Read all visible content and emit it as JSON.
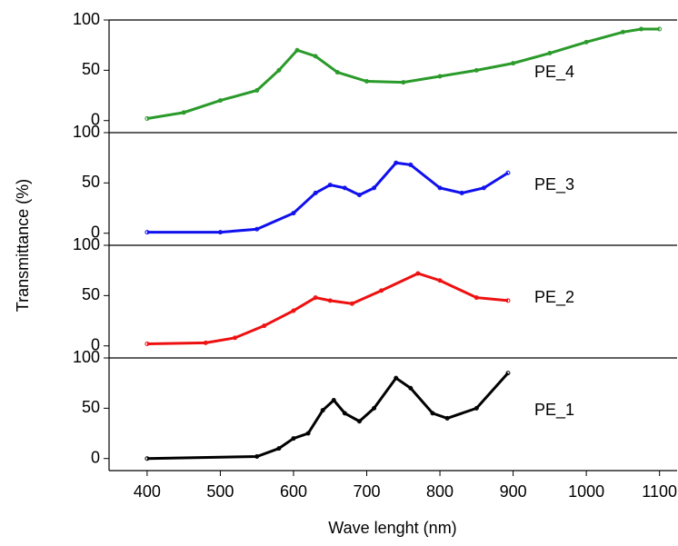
{
  "chart_data": [
    {
      "type": "line",
      "name": "PE_4",
      "color": "#2a9a2a",
      "ylabel": "Transmittance (%)",
      "x": [
        400,
        450,
        500,
        550,
        580,
        605,
        630,
        660,
        700,
        750,
        800,
        850,
        900,
        950,
        1000,
        1050,
        1075,
        1100
      ],
      "values": [
        2,
        8,
        20,
        30,
        50,
        70,
        64,
        48,
        39,
        38,
        44,
        50,
        57,
        67,
        78,
        88,
        91,
        91
      ],
      "xlim": [
        348,
        1124
      ],
      "ylim": [
        -12,
        100
      ],
      "yticks": [
        0,
        50,
        100
      ]
    },
    {
      "type": "line",
      "name": "PE_3",
      "color": "#1010ee",
      "x": [
        400,
        500,
        550,
        600,
        630,
        650,
        670,
        690,
        710,
        740,
        760,
        800,
        830,
        860,
        893
      ],
      "values": [
        1,
        1,
        4,
        20,
        40,
        48,
        45,
        38,
        45,
        70,
        68,
        45,
        40,
        45,
        60
      ],
      "xlim": [
        348,
        1124
      ],
      "ylim": [
        -12,
        100
      ],
      "yticks": [
        0,
        50,
        100
      ]
    },
    {
      "type": "line",
      "name": "PE_2",
      "color": "#ee1010",
      "x": [
        400,
        480,
        520,
        560,
        600,
        630,
        650,
        680,
        720,
        770,
        800,
        850,
        893
      ],
      "values": [
        2,
        3,
        8,
        20,
        35,
        48,
        45,
        42,
        55,
        72,
        65,
        48,
        45
      ],
      "xlim": [
        348,
        1124
      ],
      "ylim": [
        -12,
        100
      ],
      "yticks": [
        0,
        50,
        100
      ]
    },
    {
      "type": "line",
      "name": "PE_1",
      "color": "#000000",
      "xlabel": "Wave lenght (nm)",
      "x": [
        400,
        550,
        580,
        600,
        620,
        640,
        655,
        670,
        690,
        710,
        740,
        760,
        790,
        810,
        850,
        893
      ],
      "values": [
        0,
        2,
        10,
        20,
        25,
        48,
        58,
        45,
        37,
        50,
        80,
        70,
        45,
        40,
        50,
        85
      ],
      "xlim": [
        348,
        1124
      ],
      "ylim": [
        -12,
        100
      ],
      "yticks": [
        0,
        50,
        100
      ],
      "xticks": [
        400,
        500,
        600,
        700,
        800,
        900,
        1000,
        1100
      ]
    }
  ]
}
